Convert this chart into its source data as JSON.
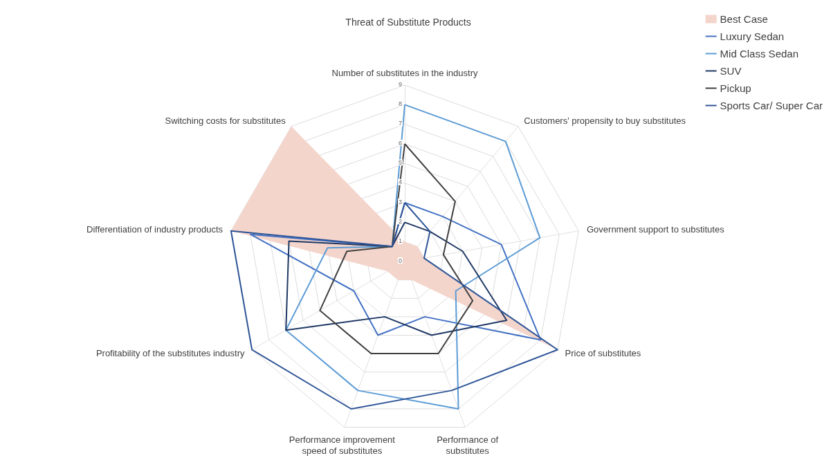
{
  "chart_data": {
    "type": "radar",
    "title": "Threat of Substitute Products",
    "categories": [
      "Number of substitutes in the industry",
      "Customers' propensity to buy substitutes",
      "Government support to substitutes",
      "Price of substitutes",
      "Performance of substitutes",
      "Performance improvement speed of substitutes",
      "Profitability of the substitutes industry",
      "Differentiation of industry products",
      "Switching costs for substitutes"
    ],
    "series": [
      {
        "name": "Best Case",
        "type": "area",
        "color": "#f4d5cc",
        "values": [
          1,
          1,
          1,
          9,
          1,
          1,
          1,
          9,
          9
        ]
      },
      {
        "name": "Luxury Sedan",
        "color": "#4472c4",
        "values": [
          3,
          3,
          5,
          8,
          3,
          4,
          3,
          8,
          1
        ]
      },
      {
        "name": "Mid Class Sedan",
        "color": "#5b9bd5",
        "values": [
          8,
          8,
          7,
          3,
          8,
          7,
          7,
          4,
          1
        ]
      },
      {
        "name": "SUV",
        "color": "#1f3864",
        "values": [
          2,
          2,
          3,
          6,
          4,
          3,
          7,
          6,
          1
        ]
      },
      {
        "name": "Pickup",
        "color": "#404040",
        "values": [
          6,
          4,
          2,
          4,
          5,
          5,
          5,
          3,
          1
        ]
      },
      {
        "name": "Sports Car/ Super Car",
        "color": "#2f5597",
        "values": [
          3,
          2,
          1,
          9,
          7,
          8,
          9,
          9,
          1
        ]
      }
    ],
    "ylim": [
      0,
      9
    ],
    "yticks": [
      0,
      1,
      2,
      3,
      4,
      5,
      6,
      7,
      8,
      9
    ],
    "grid": true,
    "legend": "top right",
    "marker": "none",
    "line_style": "solid"
  }
}
